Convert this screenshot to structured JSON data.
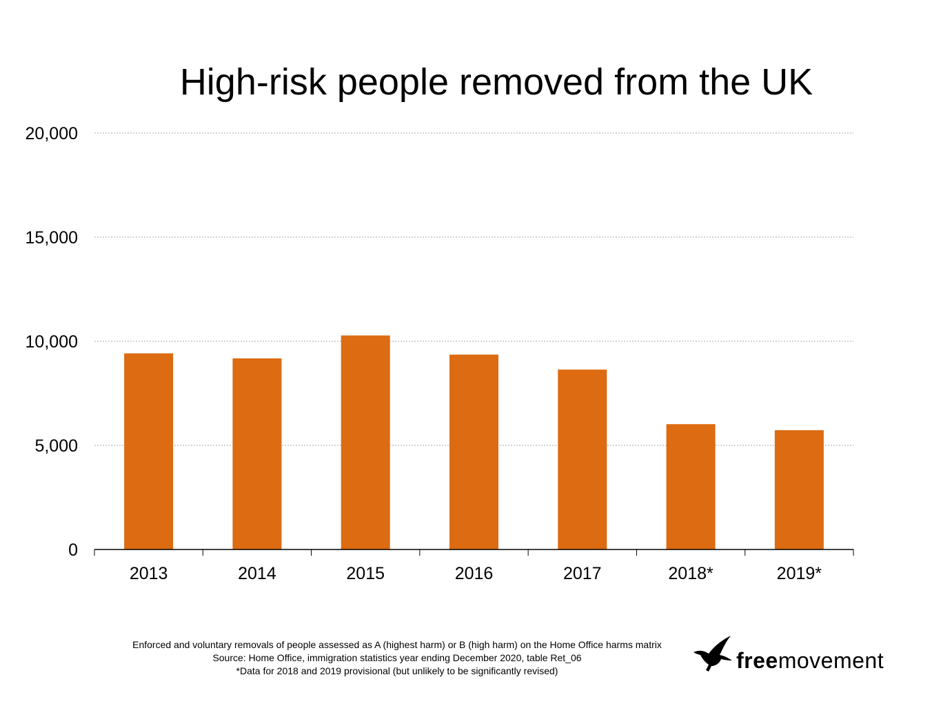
{
  "chart_data": {
    "type": "bar",
    "title": "High-risk people removed from the UK",
    "categories": [
      "2013",
      "2014",
      "2015",
      "2016",
      "2017",
      "2018*",
      "2019*"
    ],
    "values": [
      9420,
      9180,
      10280,
      9360,
      8640,
      6020,
      5730
    ],
    "ylim": [
      0,
      20000
    ],
    "yticks": [
      0,
      5000,
      10000,
      15000,
      20000
    ],
    "ytick_labels": [
      "0",
      "5,000",
      "10,000",
      "15,000",
      "20,000"
    ],
    "grid": true,
    "bar_color": "#dc6b11",
    "legend": "none"
  },
  "footnotes": {
    "line1": "Enforced and voluntary removals of people assessed as A (highest harm) or B (high harm) on the Home Office harms matrix",
    "line2": "Source: Home Office, immigration statistics year ending December 2020, table Ret_06",
    "line3": "*Data for 2018 and 2019 provisional (but unlikely to be significantly revised)"
  },
  "logo": {
    "icon": "goose-icon",
    "bold_part": "free",
    "regular_part": "movement"
  }
}
